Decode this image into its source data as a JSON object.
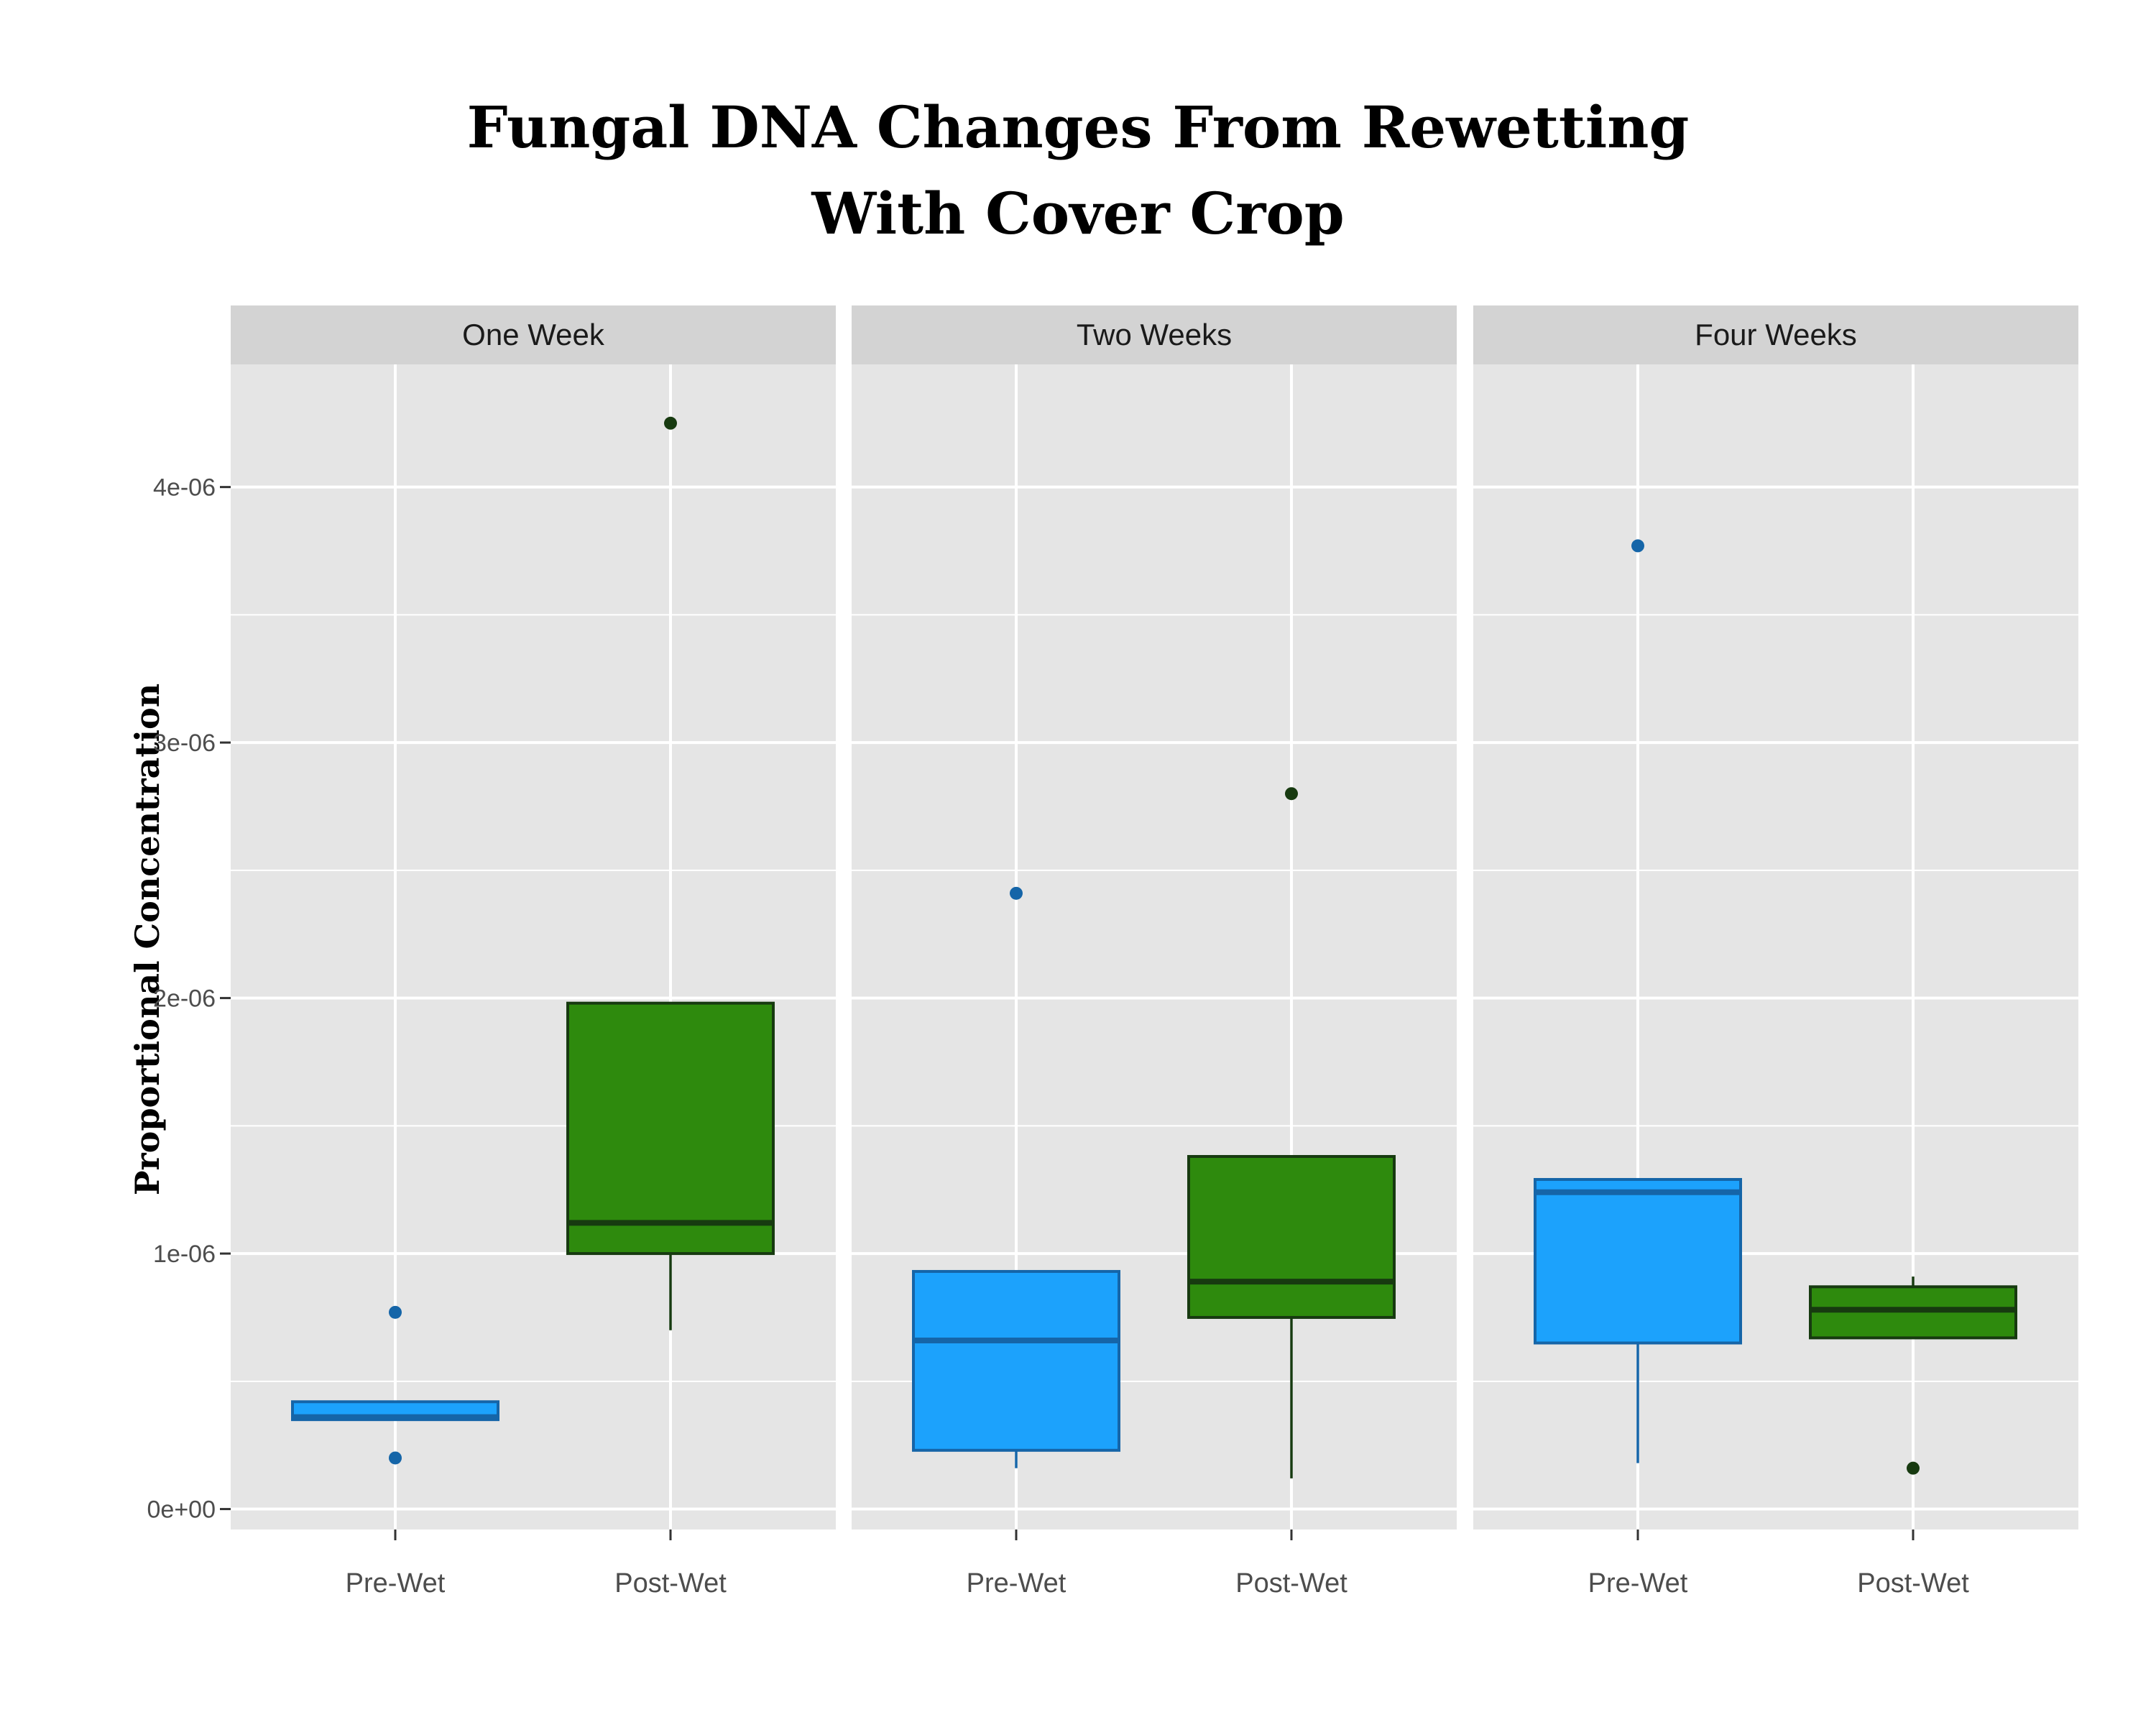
{
  "chart_data": {
    "type": "box",
    "title_lines": [
      "Fungal DNA Changes From Rewetting",
      "With Cover Crop"
    ],
    "ylabel": "Proportional Concentration",
    "ylim": [
      -8e-08,
      4.48e-06
    ],
    "y_ticks": [
      "0e+00",
      "1e-06",
      "2e-06",
      "3e-06",
      "4e-06"
    ],
    "y_tick_values": [
      0,
      1e-06,
      2e-06,
      3e-06,
      4e-06
    ],
    "grid": true,
    "categories": [
      "Pre-Wet",
      "Post-Wet"
    ],
    "panels": [
      {
        "label": "One Week",
        "boxes": [
          {
            "category": "Pre-Wet",
            "lower_whisker": 3.5e-07,
            "q1": 3.5e-07,
            "median": 3.6e-07,
            "q3": 4.2e-07,
            "upper_whisker": 4.2e-07,
            "outliers": [
              7.7e-07,
              2e-07
            ]
          },
          {
            "category": "Post-Wet",
            "lower_whisker": 7e-07,
            "q1": 1e-06,
            "median": 1.12e-06,
            "q3": 1.98e-06,
            "upper_whisker": 1.98e-06,
            "outliers": [
              4.25e-06
            ]
          }
        ]
      },
      {
        "label": "Two Weeks",
        "boxes": [
          {
            "category": "Pre-Wet",
            "lower_whisker": 1.6e-07,
            "q1": 2.3e-07,
            "median": 6.6e-07,
            "q3": 9.3e-07,
            "upper_whisker": 9.3e-07,
            "outliers": [
              2.41e-06
            ]
          },
          {
            "category": "Post-Wet",
            "lower_whisker": 1.2e-07,
            "q1": 7.5e-07,
            "median": 8.9e-07,
            "q3": 1.38e-06,
            "upper_whisker": 1.38e-06,
            "outliers": [
              2.8e-06
            ]
          }
        ]
      },
      {
        "label": "Four Weeks",
        "boxes": [
          {
            "category": "Pre-Wet",
            "lower_whisker": 1.8e-07,
            "q1": 6.5e-07,
            "median": 1.24e-06,
            "q3": 1.29e-06,
            "upper_whisker": 1.29e-06,
            "outliers": [
              3.77e-06
            ]
          },
          {
            "category": "Post-Wet",
            "lower_whisker": 6.7e-07,
            "q1": 6.7e-07,
            "median": 7.8e-07,
            "q3": 8.7e-07,
            "upper_whisker": 9.1e-07,
            "outliers": [
              1.6e-07
            ]
          }
        ]
      }
    ],
    "colors": {
      "panel_bg": "#e5e5e5",
      "strip_bg": "#d3d3d3",
      "grid": "#ffffff",
      "pre_fill": "#1ca2fc",
      "pre_line": "#1565a8",
      "post_fill": "#2e8a0d",
      "post_line": "#173a10",
      "axis_text": "#4d4d4d"
    }
  }
}
